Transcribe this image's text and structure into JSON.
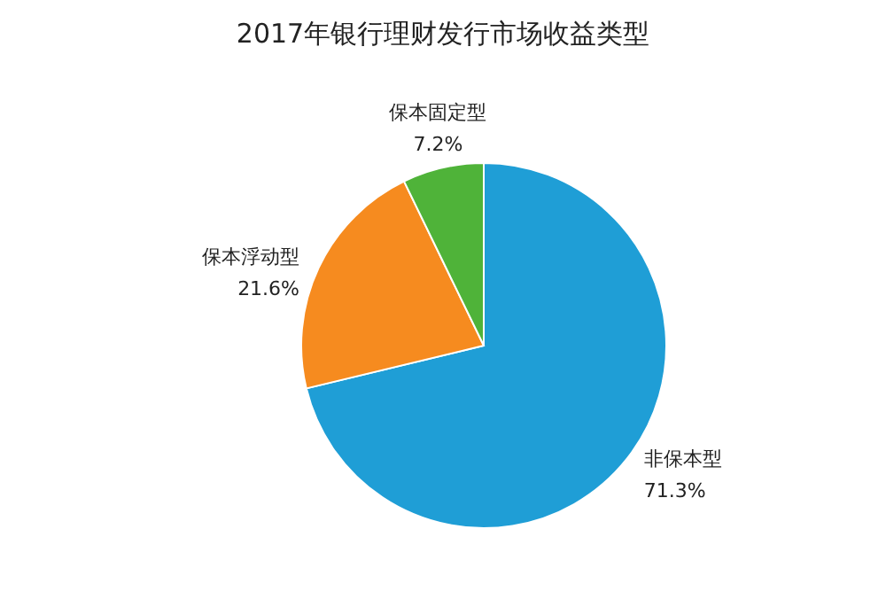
{
  "chart_data": {
    "type": "pie",
    "title": "2017年银行理财发行市场收益类型",
    "categories": [
      "非保本型",
      "保本浮动型",
      "保本固定型"
    ],
    "values": [
      71.3,
      21.6,
      7.2
    ],
    "colors": [
      "#1f9ed6",
      "#f68b1f",
      "#4fb339"
    ],
    "value_labels": [
      "71.3%",
      "21.6%",
      "7.2%"
    ],
    "legend": false
  }
}
